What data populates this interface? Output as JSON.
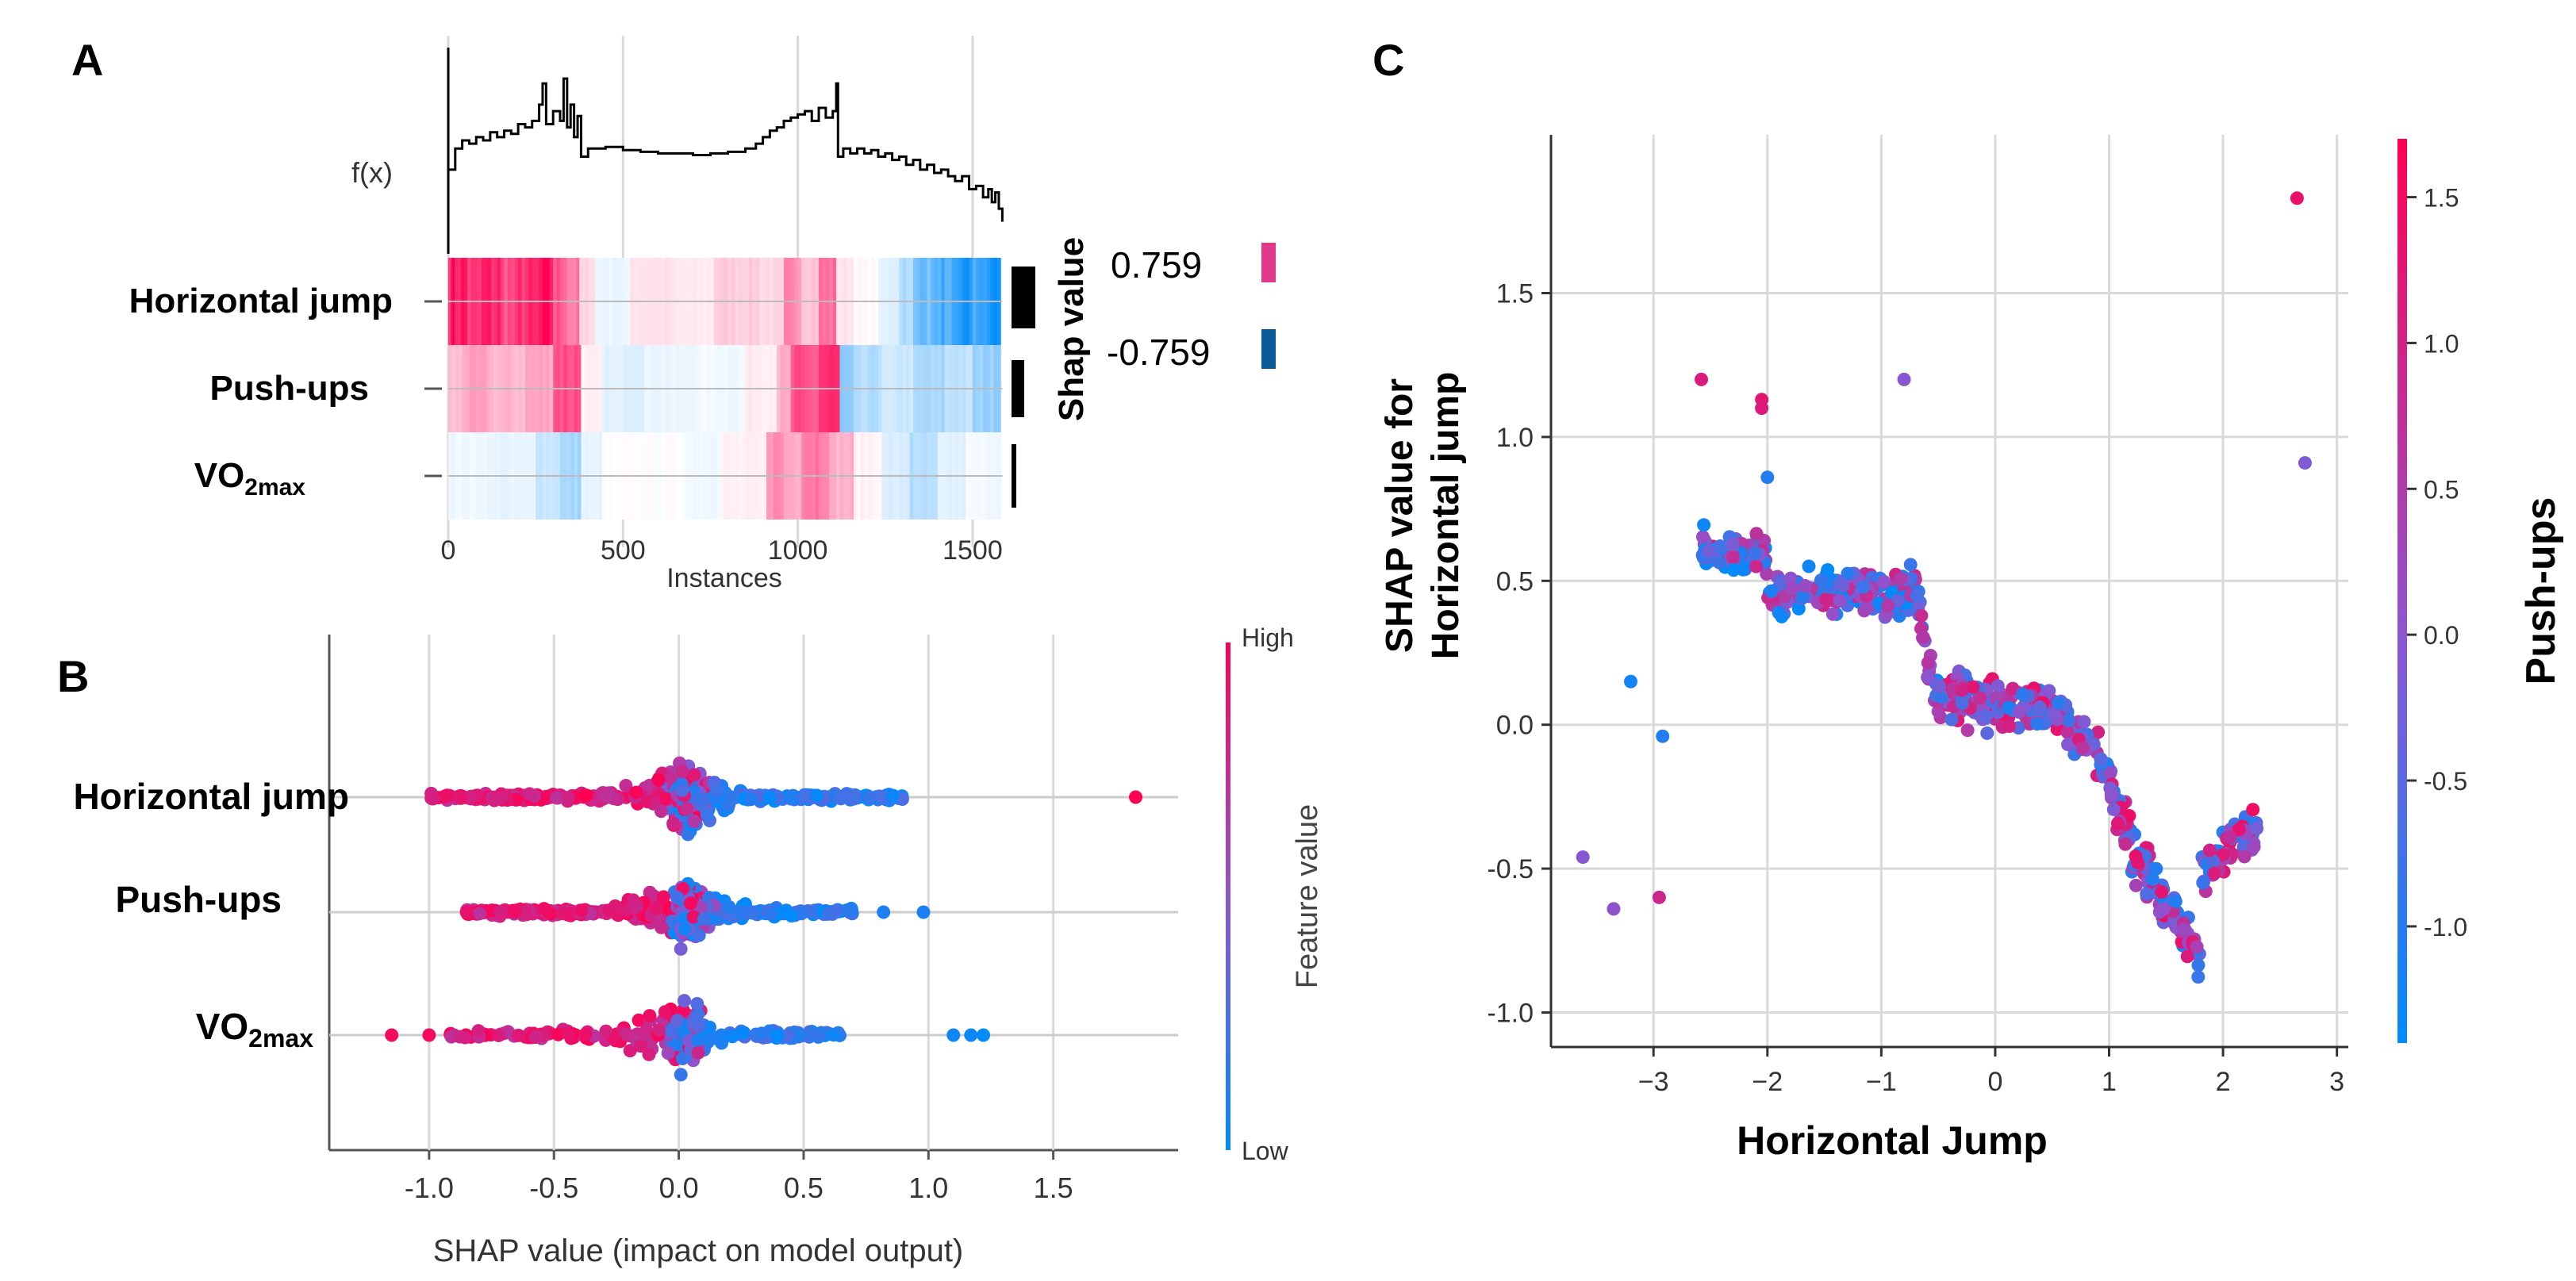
{
  "panel_labels": {
    "a": "A",
    "b": "B",
    "c": "C"
  },
  "colors": {
    "pink": "#ff0052",
    "blue": "#008bfb",
    "purple": "#8c55d0",
    "grid": "#d9d9d9",
    "axis": "#333333",
    "text": "#111111",
    "bar": "#000000",
    "legend_pink": "#e0398c",
    "legend_blue": "#0b5a9a"
  },
  "chart_data": [
    {
      "id": "A",
      "type": "heatmap",
      "title": "",
      "fx_label": "f(x)",
      "xlabel": "Instances",
      "xlim": [
        0,
        1600
      ],
      "xticks": [
        0,
        500,
        1000,
        1500
      ],
      "features": [
        "Horizontal jump",
        "Push-ups",
        "VO2max"
      ],
      "feature_labels": [
        {
          "main": "Horizontal jump",
          "sub": ""
        },
        {
          "main": "Push-ups",
          "sub": ""
        },
        {
          "main": "VO",
          "sub": "2max"
        }
      ],
      "importance": [
        0.55,
        0.32,
        0.1
      ],
      "colorbar_label": "Shap value",
      "colorbar_max": "0.759",
      "colorbar_min": "-0.759",
      "fx_points": [
        [
          0,
          0.42
        ],
        [
          20,
          0.55
        ],
        [
          40,
          0.6
        ],
        [
          60,
          0.58
        ],
        [
          80,
          0.62
        ],
        [
          100,
          0.6
        ],
        [
          120,
          0.65
        ],
        [
          140,
          0.62
        ],
        [
          160,
          0.66
        ],
        [
          180,
          0.64
        ],
        [
          200,
          0.7
        ],
        [
          220,
          0.68
        ],
        [
          240,
          0.72
        ],
        [
          260,
          0.82
        ],
        [
          270,
          0.95
        ],
        [
          280,
          0.7
        ],
        [
          300,
          0.78
        ],
        [
          320,
          0.72
        ],
        [
          330,
          0.98
        ],
        [
          340,
          0.68
        ],
        [
          350,
          0.82
        ],
        [
          360,
          0.62
        ],
        [
          370,
          0.75
        ],
        [
          380,
          0.5
        ],
        [
          400,
          0.55
        ],
        [
          450,
          0.56
        ],
        [
          500,
          0.54
        ],
        [
          550,
          0.53
        ],
        [
          600,
          0.52
        ],
        [
          650,
          0.52
        ],
        [
          700,
          0.51
        ],
        [
          750,
          0.52
        ],
        [
          800,
          0.53
        ],
        [
          850,
          0.55
        ],
        [
          880,
          0.58
        ],
        [
          900,
          0.62
        ],
        [
          920,
          0.66
        ],
        [
          940,
          0.68
        ],
        [
          960,
          0.72
        ],
        [
          980,
          0.74
        ],
        [
          1000,
          0.76
        ],
        [
          1020,
          0.78
        ],
        [
          1040,
          0.72
        ],
        [
          1060,
          0.8
        ],
        [
          1080,
          0.74
        ],
        [
          1100,
          0.78
        ],
        [
          1110,
          0.95
        ],
        [
          1115,
          0.5
        ],
        [
          1130,
          0.55
        ],
        [
          1150,
          0.52
        ],
        [
          1170,
          0.55
        ],
        [
          1190,
          0.52
        ],
        [
          1210,
          0.54
        ],
        [
          1230,
          0.5
        ],
        [
          1250,
          0.52
        ],
        [
          1270,
          0.48
        ],
        [
          1290,
          0.5
        ],
        [
          1310,
          0.45
        ],
        [
          1330,
          0.48
        ],
        [
          1350,
          0.42
        ],
        [
          1370,
          0.45
        ],
        [
          1390,
          0.4
        ],
        [
          1410,
          0.42
        ],
        [
          1430,
          0.38
        ],
        [
          1450,
          0.35
        ],
        [
          1470,
          0.38
        ],
        [
          1490,
          0.3
        ],
        [
          1510,
          0.32
        ],
        [
          1530,
          0.25
        ],
        [
          1545,
          0.3
        ],
        [
          1555,
          0.22
        ],
        [
          1565,
          0.28
        ],
        [
          1575,
          0.18
        ],
        [
          1585,
          0.1
        ]
      ],
      "rows": [
        [
          [
            0,
            55,
            0.9
          ],
          [
            55,
            95,
            0.75
          ],
          [
            95,
            150,
            0.85
          ],
          [
            150,
            200,
            0.7
          ],
          [
            200,
            260,
            0.8
          ],
          [
            260,
            300,
            0.9
          ],
          [
            300,
            340,
            0.65
          ],
          [
            340,
            375,
            0.5
          ],
          [
            375,
            420,
            0.15
          ],
          [
            420,
            520,
            -0.08
          ],
          [
            520,
            640,
            0.12
          ],
          [
            640,
            760,
            0.08
          ],
          [
            760,
            890,
            0.2
          ],
          [
            890,
            960,
            0.15
          ],
          [
            960,
            1010,
            0.45
          ],
          [
            1010,
            1060,
            0.25
          ],
          [
            1060,
            1110,
            0.55
          ],
          [
            1110,
            1160,
            0.1
          ],
          [
            1160,
            1230,
            0.02
          ],
          [
            1230,
            1290,
            -0.12
          ],
          [
            1290,
            1330,
            -0.3
          ],
          [
            1330,
            1390,
            -0.55
          ],
          [
            1390,
            1440,
            -0.7
          ],
          [
            1440,
            1500,
            -0.9
          ],
          [
            1500,
            1540,
            -0.75
          ],
          [
            1540,
            1580,
            -0.95
          ]
        ],
        [
          [
            0,
            40,
            0.25
          ],
          [
            40,
            120,
            0.35
          ],
          [
            120,
            220,
            0.28
          ],
          [
            220,
            300,
            0.35
          ],
          [
            300,
            380,
            0.7
          ],
          [
            380,
            440,
            0.05
          ],
          [
            440,
            560,
            -0.12
          ],
          [
            560,
            700,
            -0.08
          ],
          [
            700,
            850,
            -0.05
          ],
          [
            850,
            940,
            0.08
          ],
          [
            940,
            980,
            0.3
          ],
          [
            980,
            1060,
            0.65
          ],
          [
            1060,
            1120,
            0.8
          ],
          [
            1120,
            1160,
            -0.5
          ],
          [
            1160,
            1240,
            -0.3
          ],
          [
            1240,
            1330,
            -0.2
          ],
          [
            1330,
            1420,
            -0.35
          ],
          [
            1420,
            1500,
            -0.25
          ],
          [
            1500,
            1580,
            -0.4
          ]
        ],
        [
          [
            0,
            120,
            -0.06
          ],
          [
            120,
            250,
            -0.1
          ],
          [
            250,
            320,
            -0.2
          ],
          [
            320,
            380,
            -0.35
          ],
          [
            380,
            440,
            -0.1
          ],
          [
            440,
            680,
            0.0
          ],
          [
            680,
            780,
            -0.05
          ],
          [
            780,
            910,
            0.05
          ],
          [
            910,
            960,
            0.45
          ],
          [
            960,
            1010,
            0.35
          ],
          [
            1010,
            1090,
            0.55
          ],
          [
            1090,
            1160,
            0.3
          ],
          [
            1160,
            1240,
            0.05
          ],
          [
            1240,
            1320,
            -0.15
          ],
          [
            1320,
            1400,
            -0.3
          ],
          [
            1400,
            1480,
            -0.12
          ],
          [
            1480,
            1580,
            -0.05
          ]
        ]
      ]
    },
    {
      "id": "B",
      "type": "scatter",
      "subtype": "beeswarm",
      "xlabel": "SHAP value (impact on model output)",
      "xlim": [
        -1.4,
        2.0
      ],
      "xticks": [
        -1.0,
        -0.5,
        0.0,
        0.5,
        1.0,
        1.5
      ],
      "xtick_labels": [
        "-1.0",
        "-0.5",
        "0.0",
        "0.5",
        "1.0",
        "1.5"
      ],
      "features": [
        "Horizontal jump",
        "Push-ups",
        "VO2max"
      ],
      "feature_labels": [
        {
          "main": "Horizontal jump",
          "sub": ""
        },
        {
          "main": "Push-ups",
          "sub": ""
        },
        {
          "main": "VO",
          "sub": "2max"
        }
      ],
      "colorbar_label": "Feature value",
      "colorbar_high": "High",
      "colorbar_low": "Low",
      "ranges": [
        [
          -1.0,
          1.83
        ],
        [
          -0.85,
          0.98
        ],
        [
          -1.15,
          1.22
        ]
      ]
    },
    {
      "id": "C",
      "type": "scatter",
      "subtype": "dependence",
      "xlabel": "Horizontal Jump",
      "ylabel_lines": [
        "SHAP value for",
        "Horizontal jump"
      ],
      "xlim": [
        -3.9,
        3.1
      ],
      "ylim": [
        -1.12,
        2.05
      ],
      "xticks": [
        -3,
        -2,
        -1,
        0,
        1,
        2,
        3
      ],
      "xtick_labels": [
        "−3",
        "−2",
        "−1",
        "0",
        "1",
        "2",
        "3"
      ],
      "yticks": [
        -1.0,
        -0.5,
        0.0,
        0.5,
        1.0,
        1.5
      ],
      "ytick_labels": [
        "-1.0",
        "-0.5",
        "0.0",
        "0.5",
        "1.0",
        "1.5"
      ],
      "colorbar_label": "Push-ups",
      "colorbar_ticks": [
        -1.0,
        -0.5,
        0.0,
        0.5,
        1.0,
        1.5
      ],
      "colorbar_tick_labels": [
        "-1.0",
        "-0.5",
        "0.0",
        "0.5",
        "1.0",
        "1.5"
      ],
      "colorbar_range": [
        -1.4,
        1.7
      ],
      "outliers": [
        [
          2.65,
          1.83,
          1.4
        ],
        [
          2.72,
          0.91,
          0.0
        ],
        [
          -0.8,
          1.2,
          0.1
        ],
        [
          -2.58,
          1.2,
          1.2
        ],
        [
          -2.05,
          1.13,
          1.3
        ],
        [
          -2.05,
          1.1,
          1.2
        ],
        [
          -3.62,
          -0.46,
          0.1
        ],
        [
          -3.35,
          -0.64,
          0.2
        ],
        [
          -3.2,
          0.15,
          -1.2
        ],
        [
          -2.92,
          -0.04,
          -1.0
        ],
        [
          -2.95,
          -0.6,
          1.0
        ],
        [
          -2.0,
          0.86,
          -1.0
        ]
      ]
    }
  ]
}
